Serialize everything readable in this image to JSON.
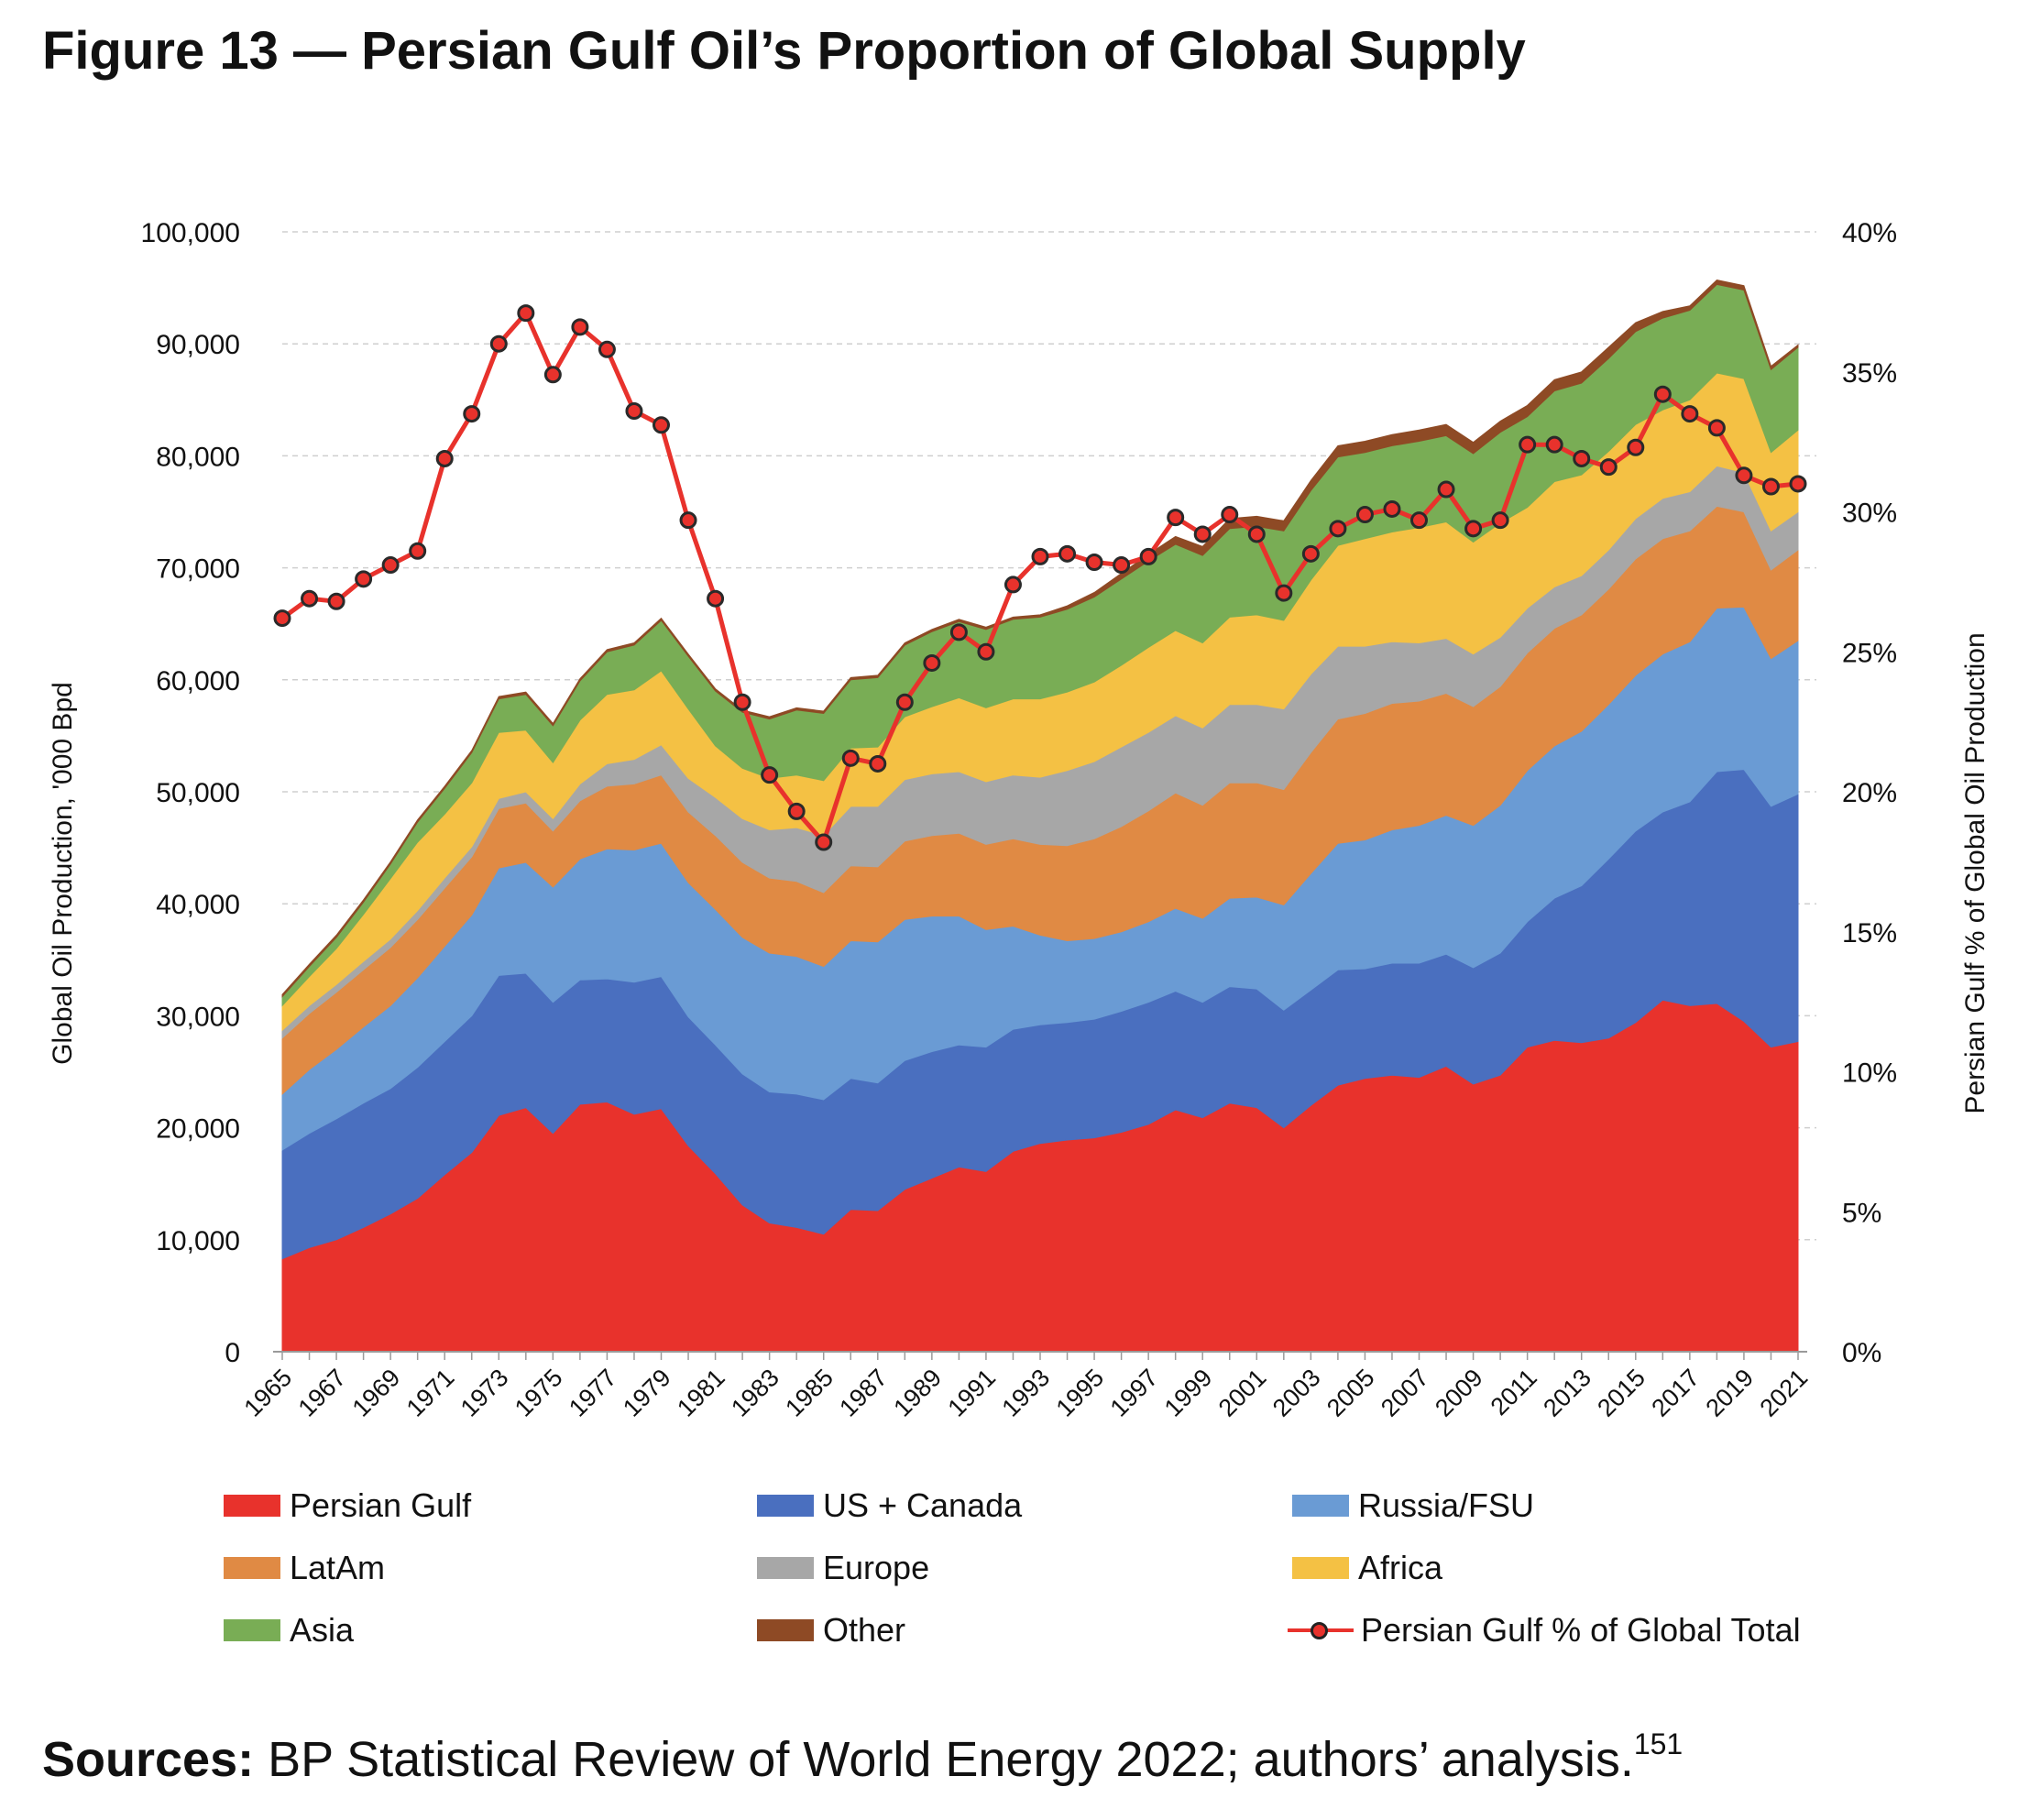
{
  "figure": {
    "title": "Figure 13 — Persian Gulf Oil’s Proportion of Global Supply",
    "source_label": "Sources:",
    "source_text": " BP Statistical Review of World Energy 2022; authors’ analysis.",
    "source_ref": "151"
  },
  "chart_data": {
    "type": "area",
    "stacked": true,
    "ylabel": "Global Oil Production, '000 Bpd",
    "y2label": "Persian Gulf % of Global Oil Production",
    "ylim": [
      0,
      100000
    ],
    "y2lim": [
      0,
      40
    ],
    "yticks": [
      "0",
      "10,000",
      "20,000",
      "30,000",
      "40,000",
      "50,000",
      "60,000",
      "70,000",
      "80,000",
      "90,000",
      "100,000"
    ],
    "y2ticks": [
      "0%",
      "5%",
      "10%",
      "15%",
      "20%",
      "25%",
      "30%",
      "35%",
      "40%"
    ],
    "grid": true,
    "legend_position": "bottom",
    "x": [
      1965,
      1966,
      1967,
      1968,
      1969,
      1970,
      1971,
      1972,
      1973,
      1974,
      1975,
      1976,
      1977,
      1978,
      1979,
      1980,
      1981,
      1982,
      1983,
      1984,
      1985,
      1986,
      1987,
      1988,
      1989,
      1990,
      1991,
      1992,
      1993,
      1994,
      1995,
      1996,
      1997,
      1998,
      1999,
      2000,
      2001,
      2002,
      2003,
      2004,
      2005,
      2006,
      2007,
      2008,
      2009,
      2010,
      2011,
      2012,
      2013,
      2014,
      2015,
      2016,
      2017,
      2018,
      2019,
      2020,
      2021
    ],
    "xtick_labels": [
      "1965",
      "1967",
      "1969",
      "1971",
      "1973",
      "1975",
      "1977",
      "1979",
      "1981",
      "1983",
      "1985",
      "1987",
      "1989",
      "1991",
      "1993",
      "1995",
      "1997",
      "1999",
      "2001",
      "2003",
      "2005",
      "2007",
      "2009",
      "2011",
      "2013",
      "2015",
      "2017",
      "2019",
      "2021"
    ],
    "series": [
      {
        "name": "Persian Gulf",
        "color": "#e8322c",
        "values": [
          8300,
          9300,
          10000,
          11100,
          12300,
          13700,
          15800,
          17800,
          21100,
          21800,
          19500,
          22100,
          22300,
          21200,
          21700,
          18400,
          15900,
          13100,
          11500,
          11100,
          10500,
          12700,
          12600,
          14500,
          15500,
          16500,
          16100,
          17900,
          18600,
          18900,
          19100,
          19600,
          20300,
          21600,
          20900,
          22200,
          21800,
          20000,
          22000,
          23800,
          24400,
          24700,
          24500,
          25500,
          23900,
          24700,
          27200,
          27800,
          27600,
          28000,
          29400,
          31400,
          30900,
          31100,
          29500,
          27200,
          27700
        ]
      },
      {
        "name": "US + Canada",
        "color": "#4a6fbf",
        "values": [
          9700,
          10200,
          10800,
          11100,
          11200,
          11700,
          11900,
          12200,
          12500,
          12000,
          11700,
          11100,
          11000,
          11800,
          11800,
          11500,
          11500,
          11700,
          11700,
          11900,
          12000,
          11700,
          11400,
          11500,
          11300,
          10900,
          11100,
          10900,
          10600,
          10500,
          10600,
          10800,
          10900,
          10600,
          10300,
          10400,
          10600,
          10500,
          10300,
          10300,
          9800,
          10000,
          10200,
          10000,
          10400,
          10900,
          11200,
          12700,
          14000,
          16000,
          17100,
          16800,
          18200,
          20700,
          22500,
          21500,
          22100
        ]
      },
      {
        "name": "Russia/FSU",
        "color": "#6a9bd4",
        "values": [
          5000,
          5700,
          6200,
          6800,
          7400,
          8000,
          8500,
          9000,
          9600,
          9900,
          10300,
          10800,
          11600,
          11800,
          11900,
          12000,
          12100,
          12200,
          12400,
          12300,
          11900,
          12300,
          12600,
          12600,
          12100,
          11500,
          10500,
          9200,
          8000,
          7300,
          7200,
          7100,
          7200,
          7400,
          7500,
          7900,
          8200,
          9400,
          10400,
          11300,
          11500,
          11900,
          12300,
          12400,
          12700,
          13200,
          13500,
          13600,
          13800,
          13800,
          13900,
          14100,
          14300,
          14600,
          14500,
          13200,
          13700
        ]
      },
      {
        "name": "LatAm",
        "color": "#e08a44",
        "values": [
          5000,
          5000,
          5100,
          5100,
          5200,
          5200,
          5200,
          5200,
          5300,
          5300,
          5000,
          5200,
          5600,
          5900,
          6100,
          6300,
          6600,
          6700,
          6700,
          6700,
          6600,
          6700,
          6700,
          7000,
          7200,
          7400,
          7600,
          7800,
          8100,
          8500,
          8900,
          9400,
          9900,
          10300,
          10100,
          10300,
          10200,
          10300,
          10800,
          11100,
          11300,
          11300,
          11100,
          10900,
          10600,
          10600,
          10500,
          10500,
          10400,
          10300,
          10400,
          10300,
          9900,
          9100,
          8500,
          7900,
          8100
        ]
      },
      {
        "name": "Europe",
        "color": "#a7a7a7",
        "values": [
          700,
          700,
          700,
          750,
          750,
          800,
          900,
          900,
          900,
          1000,
          1100,
          1500,
          2000,
          2200,
          2700,
          3000,
          3400,
          3900,
          4300,
          4800,
          5100,
          5300,
          5400,
          5500,
          5500,
          5500,
          5600,
          5700,
          6000,
          6700,
          6900,
          7100,
          7000,
          6900,
          6900,
          7000,
          7000,
          7200,
          7000,
          6500,
          6000,
          5500,
          5200,
          4900,
          4700,
          4400,
          4000,
          3700,
          3500,
          3500,
          3600,
          3600,
          3500,
          3600,
          3500,
          3500,
          3400
        ]
      },
      {
        "name": "Africa",
        "color": "#f4c144",
        "values": [
          2200,
          2600,
          3200,
          4200,
          5400,
          6100,
          5700,
          5700,
          5900,
          5500,
          5000,
          5700,
          6200,
          6200,
          6600,
          6200,
          4600,
          4500,
          4600,
          4700,
          4900,
          5200,
          5300,
          5600,
          6000,
          6600,
          6600,
          6800,
          7000,
          7000,
          7100,
          7300,
          7600,
          7600,
          7600,
          7800,
          8000,
          7900,
          8400,
          9000,
          9600,
          9800,
          10300,
          10400,
          10000,
          10200,
          9000,
          9400,
          9000,
          8800,
          8400,
          7900,
          8200,
          8300,
          8400,
          7000,
          7300
        ]
      },
      {
        "name": "Asia",
        "color": "#79ad55",
        "values": [
          800,
          900,
          1000,
          1100,
          1300,
          1800,
          2300,
          2700,
          3000,
          3200,
          3300,
          3500,
          3800,
          4000,
          4500,
          4700,
          4900,
          5000,
          5300,
          5800,
          6000,
          6100,
          6200,
          6400,
          6700,
          6800,
          7000,
          7100,
          7300,
          7400,
          7600,
          7700,
          7700,
          7700,
          7800,
          7900,
          7900,
          8000,
          8000,
          7900,
          7700,
          7700,
          7700,
          7700,
          7900,
          8100,
          8100,
          8100,
          8200,
          8300,
          8300,
          8200,
          8000,
          7900,
          7900,
          7400,
          7400
        ]
      },
      {
        "name": "Other",
        "color": "#8e4a25",
        "values": [
          200,
          200,
          200,
          200,
          200,
          200,
          200,
          200,
          200,
          200,
          200,
          200,
          200,
          200,
          200,
          200,
          200,
          200,
          200,
          200,
          200,
          200,
          200,
          200,
          200,
          200,
          200,
          200,
          200,
          300,
          400,
          500,
          600,
          700,
          800,
          900,
          900,
          900,
          900,
          1000,
          1000,
          1000,
          1000,
          1000,
          1000,
          1000,
          1000,
          1000,
          1000,
          1000,
          800,
          600,
          400,
          400,
          400,
          300,
          200
        ]
      }
    ],
    "line_series": {
      "name": "Persian Gulf % of Global Total",
      "color": "#e8322c",
      "axis": "right",
      "values": [
        26.2,
        26.9,
        26.8,
        27.6,
        28.1,
        28.6,
        31.9,
        33.5,
        36.0,
        37.1,
        34.9,
        36.6,
        35.8,
        33.6,
        33.1,
        29.7,
        26.9,
        23.2,
        20.6,
        19.3,
        18.2,
        21.2,
        21.0,
        23.2,
        24.6,
        25.7,
        25.0,
        27.4,
        28.4,
        28.5,
        28.2,
        28.1,
        28.4,
        29.8,
        29.2,
        29.9,
        29.2,
        27.1,
        28.5,
        29.4,
        29.9,
        30.1,
        29.7,
        30.8,
        29.4,
        29.7,
        32.4,
        32.4,
        31.9,
        31.6,
        32.3,
        34.2,
        33.5,
        33.0,
        31.3,
        30.9,
        31.0
      ]
    }
  }
}
